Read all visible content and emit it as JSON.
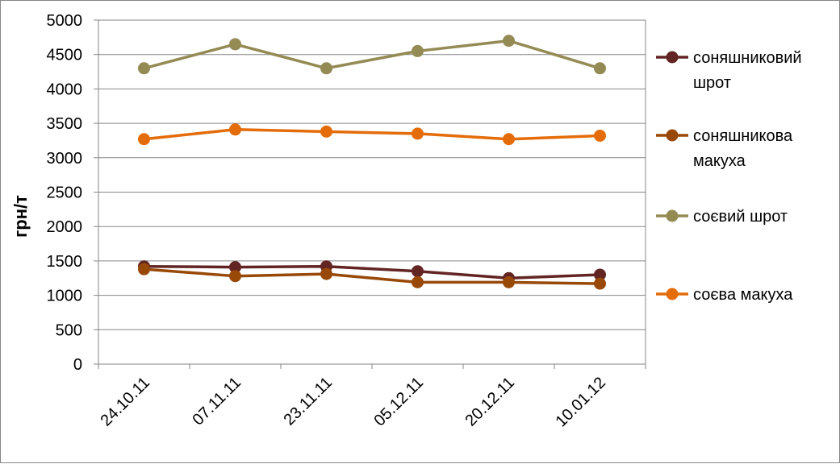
{
  "chart_data": {
    "type": "line",
    "title": "",
    "xlabel": "",
    "ylabel": "грн/т",
    "ylim": [
      0,
      5000
    ],
    "yticks": [
      0,
      500,
      1000,
      1500,
      2000,
      2500,
      3000,
      3500,
      4000,
      4500,
      5000
    ],
    "grid": true,
    "legend_position": "right",
    "categories": [
      "24.10.11",
      "07.11.11",
      "23.11.11",
      "05.12.11",
      "20.12.11",
      "10.01.12"
    ],
    "series": [
      {
        "name": "соняшниковий шрот",
        "legend_lines": [
          "соняшниковий",
          "шрот"
        ],
        "color": "#632523",
        "values": [
          1420,
          1410,
          1420,
          1350,
          1250,
          1300
        ]
      },
      {
        "name": "соняшникова макуха",
        "legend_lines": [
          "соняшникова",
          "макуха"
        ],
        "color": "#984807",
        "values": [
          1380,
          1280,
          1310,
          1190,
          1190,
          1170
        ]
      },
      {
        "name": "соєвий шрот",
        "legend_lines": [
          "соєвий шрот"
        ],
        "color": "#948a54",
        "values": [
          4300,
          4650,
          4300,
          4550,
          4700,
          4300
        ]
      },
      {
        "name": "соєва макуха",
        "legend_lines": [
          "соєва макуха"
        ],
        "color": "#e46c0a",
        "values": [
          3270,
          3410,
          3380,
          3350,
          3270,
          3320
        ]
      }
    ]
  }
}
